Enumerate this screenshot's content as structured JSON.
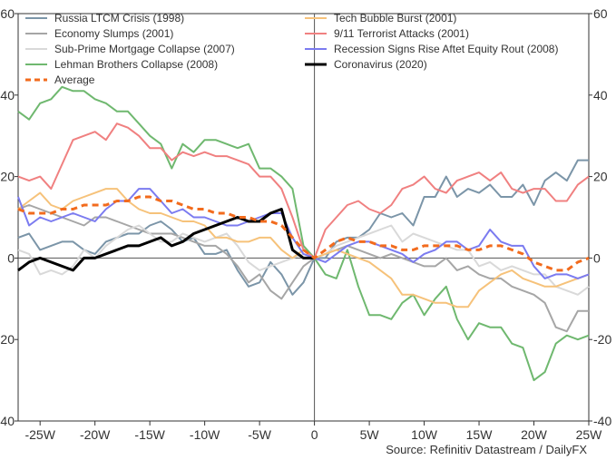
{
  "chart_data": {
    "type": "line",
    "title": "",
    "xlabel": "",
    "ylabel": "",
    "xlim": [
      -27,
      25
    ],
    "ylim": [
      -40,
      60
    ],
    "x_ticks": [
      -25,
      -20,
      -15,
      -10,
      -5,
      0,
      5,
      10,
      15,
      20,
      25
    ],
    "x_tick_labels": [
      "-25W",
      "-20W",
      "-15W",
      "-10W",
      "-5W",
      "0",
      "5W",
      "10W",
      "15W",
      "20W",
      "25W"
    ],
    "y_ticks": [
      -40,
      -20,
      0,
      20,
      40,
      60
    ],
    "y_tick_labels": [
      "-40",
      "-20",
      "0",
      "20",
      "40",
      "60"
    ],
    "grid": false,
    "legend_position": "top",
    "source": "Source: Refinitiv Datastream / DailyFX",
    "series": [
      {
        "name": "Russia LTCM Crisis (1998)",
        "color": "#7b95a8",
        "width": 2,
        "dash": "",
        "x": [
          -27,
          -26,
          -25,
          -24,
          -23,
          -22,
          -21,
          -20,
          -19,
          -18,
          -17,
          -16,
          -15,
          -14,
          -13,
          -12,
          -11,
          -10,
          -9,
          -8,
          -7,
          -6,
          -5,
          -4,
          -3,
          -2,
          -1,
          0,
          1,
          2,
          3,
          4,
          5,
          6,
          7,
          8,
          9,
          10,
          11,
          12,
          13,
          14,
          15,
          16,
          17,
          18,
          19,
          20,
          21,
          22,
          23,
          24,
          25
        ],
        "y": [
          5,
          6,
          2,
          3,
          4,
          4,
          2,
          1,
          4,
          5,
          6,
          6,
          8,
          9,
          7,
          4,
          5,
          1,
          1,
          2,
          -3,
          -7,
          -6,
          -1,
          -4,
          -9,
          -6,
          0,
          0,
          4,
          5,
          5,
          7,
          11,
          10,
          11,
          8,
          15,
          15,
          20,
          15,
          17,
          16,
          18,
          15,
          15,
          18,
          13,
          19,
          21,
          19,
          24,
          24
        ]
      },
      {
        "name": "Economy Slumps (2001)",
        "color": "#a6a6a6",
        "width": 2,
        "dash": "",
        "x": [
          -27,
          -26,
          -25,
          -24,
          -23,
          -22,
          -21,
          -20,
          -19,
          -18,
          -17,
          -16,
          -15,
          -14,
          -13,
          -12,
          -11,
          -10,
          -9,
          -8,
          -7,
          -6,
          -5,
          -4,
          -3,
          -2,
          -1,
          0,
          1,
          2,
          3,
          4,
          5,
          6,
          7,
          8,
          9,
          10,
          11,
          12,
          13,
          14,
          15,
          16,
          17,
          18,
          19,
          20,
          21,
          22,
          23,
          24,
          25
        ],
        "y": [
          12,
          13,
          12,
          11,
          10,
          9,
          8,
          10,
          10,
          9,
          8,
          7,
          6,
          6,
          6,
          5,
          4,
          3,
          3,
          1,
          -2,
          -6,
          -4,
          -8,
          -10,
          -6,
          -2,
          0,
          1,
          2,
          3,
          2,
          1,
          0,
          1,
          0,
          -1,
          -2,
          -2,
          0,
          -3,
          -2,
          -4,
          -5,
          -5,
          -7,
          -8,
          -9,
          -11,
          -17,
          -18,
          -13,
          -13
        ]
      },
      {
        "name": "Sub-Prime Mortgage Collapse (2007)",
        "color": "#d9d9d9",
        "width": 2,
        "dash": "",
        "x": [
          -27,
          -26,
          -25,
          -24,
          -23,
          -22,
          -21,
          -20,
          -19,
          -18,
          -17,
          -16,
          -15,
          -14,
          -13,
          -12,
          -11,
          -10,
          -9,
          -8,
          -7,
          -6,
          -5,
          -4,
          -3,
          -2,
          -1,
          0,
          1,
          2,
          3,
          4,
          5,
          6,
          7,
          8,
          9,
          10,
          11,
          12,
          13,
          14,
          15,
          16,
          17,
          18,
          19,
          20,
          21,
          22,
          23,
          24,
          25
        ],
        "y": [
          2,
          1,
          -4,
          -3,
          -4,
          -2,
          2,
          0,
          3,
          5,
          7,
          8,
          6,
          4,
          4,
          6,
          5,
          4,
          5,
          6,
          3,
          -1,
          -3,
          -2,
          -1,
          0,
          1,
          0,
          1,
          3,
          4,
          5,
          6,
          7,
          8,
          4,
          6,
          5,
          4,
          3,
          2,
          2,
          -2,
          -1,
          -3,
          -2,
          -3,
          -4,
          -4,
          -7,
          -8,
          -9,
          -7
        ]
      },
      {
        "name": "Lehman Brothers Collapse (2008)",
        "color": "#6fb86f",
        "width": 2,
        "dash": "",
        "x": [
          -27,
          -26,
          -25,
          -24,
          -23,
          -22,
          -21,
          -20,
          -19,
          -18,
          -17,
          -16,
          -15,
          -14,
          -13,
          -12,
          -11,
          -10,
          -9,
          -8,
          -7,
          -6,
          -5,
          -4,
          -3,
          -2,
          -1,
          0,
          1,
          2,
          3,
          4,
          5,
          6,
          7,
          8,
          9,
          10,
          11,
          12,
          13,
          14,
          15,
          16,
          17,
          18,
          19,
          20,
          21,
          22,
          23,
          24,
          25
        ],
        "y": [
          36,
          34,
          38,
          39,
          42,
          41,
          41,
          39,
          38,
          36,
          36,
          33,
          30,
          28,
          22,
          28,
          26,
          29,
          29,
          28,
          27,
          28,
          22,
          22,
          20,
          17,
          3,
          0,
          -4,
          -5,
          2,
          -7,
          -14,
          -14,
          -15,
          -11,
          -9,
          -14,
          -10,
          -7,
          -15,
          -20,
          -16,
          -17,
          -17,
          -21,
          -22,
          -30,
          -28,
          -21,
          -19,
          -20,
          -19
        ]
      },
      {
        "name": "Tech Bubble Burst (2001)",
        "color": "#f6c27a",
        "width": 2,
        "dash": "",
        "x": [
          -27,
          -26,
          -25,
          -24,
          -23,
          -22,
          -21,
          -20,
          -19,
          -18,
          -17,
          -16,
          -15,
          -14,
          -13,
          -12,
          -11,
          -10,
          -9,
          -8,
          -7,
          -6,
          -5,
          -4,
          -3,
          -2,
          -1,
          0,
          1,
          2,
          3,
          4,
          5,
          6,
          7,
          8,
          9,
          10,
          11,
          12,
          13,
          14,
          15,
          16,
          17,
          18,
          19,
          20,
          21,
          22,
          23,
          24,
          25
        ],
        "y": [
          12,
          14,
          16,
          13,
          12,
          14,
          15,
          16,
          17,
          17,
          14,
          12,
          11,
          11,
          10,
          9,
          9,
          8,
          5,
          5,
          4,
          4,
          5,
          5,
          2,
          0,
          2,
          0,
          1,
          2,
          1,
          0,
          -1,
          -3,
          -5,
          -9,
          -9,
          -10,
          -11,
          -11,
          -12,
          -12,
          -8,
          -6,
          -4,
          -3,
          -5,
          -6,
          -7,
          -7,
          -6,
          -5,
          -4
        ]
      },
      {
        "name": "9/11 Terrorist Attacks (2001)",
        "color": "#f08080",
        "width": 2,
        "dash": "",
        "x": [
          -27,
          -26,
          -25,
          -24,
          -23,
          -22,
          -21,
          -20,
          -19,
          -18,
          -17,
          -16,
          -15,
          -14,
          -13,
          -12,
          -11,
          -10,
          -9,
          -8,
          -7,
          -6,
          -5,
          -4,
          -3,
          -2,
          -1,
          0,
          1,
          2,
          3,
          4,
          5,
          6,
          7,
          8,
          9,
          10,
          11,
          12,
          13,
          14,
          15,
          16,
          17,
          18,
          19,
          20,
          21,
          22,
          23,
          24,
          25
        ],
        "y": [
          20,
          19,
          20,
          17,
          23,
          29,
          30,
          31,
          29,
          33,
          32,
          30,
          27,
          27,
          24,
          26,
          25,
          26,
          25,
          25,
          24,
          23,
          20,
          20,
          17,
          10,
          2,
          0,
          7,
          10,
          13,
          14,
          12,
          11,
          13,
          17,
          18,
          20,
          17,
          16,
          19,
          20,
          21,
          19,
          21,
          17,
          16,
          17,
          17,
          14,
          14,
          18,
          20
        ]
      },
      {
        "name": "Recession Signs Rise Aftet Equity Rout (2008)",
        "color": "#7b7bf0",
        "width": 2,
        "dash": "",
        "x": [
          -27,
          -26,
          -25,
          -24,
          -23,
          -22,
          -21,
          -20,
          -19,
          -18,
          -17,
          -16,
          -15,
          -14,
          -13,
          -12,
          -11,
          -10,
          -9,
          -8,
          -7,
          -6,
          -5,
          -4,
          -3,
          -2,
          -1,
          0,
          1,
          2,
          3,
          4,
          5,
          6,
          7,
          8,
          9,
          10,
          11,
          12,
          13,
          14,
          15,
          16,
          17,
          18,
          19,
          20,
          21,
          22,
          23,
          24,
          25
        ],
        "y": [
          15,
          8,
          10,
          9,
          10,
          11,
          10,
          9,
          12,
          14,
          14,
          17,
          17,
          14,
          11,
          12,
          10,
          10,
          9,
          8,
          8,
          9,
          10,
          11,
          11,
          5,
          1,
          0,
          -1,
          1,
          3,
          4,
          4,
          3,
          2,
          1,
          -1,
          1,
          2,
          4,
          4,
          2,
          3,
          7,
          4,
          3,
          3,
          -2,
          -5,
          -4,
          -4,
          -5,
          -4
        ]
      },
      {
        "name": "Coronavirus (2020)",
        "color": "#000000",
        "width": 3,
        "dash": "",
        "x": [
          -27,
          -26,
          -25,
          -24,
          -23,
          -22,
          -21,
          -20,
          -19,
          -18,
          -17,
          -16,
          -15,
          -14,
          -13,
          -12,
          -11,
          -10,
          -9,
          -8,
          -7,
          -6,
          -5,
          -4,
          -3,
          -2,
          -1,
          0
        ],
        "y": [
          -3,
          -1,
          0,
          -1,
          -2,
          -3,
          0,
          0,
          1,
          2,
          3,
          3,
          4,
          5,
          3,
          4,
          6,
          7,
          8,
          9,
          10,
          9,
          9,
          11,
          12,
          2,
          0,
          0
        ]
      },
      {
        "name": "Average",
        "color": "#f26b1d",
        "width": 3,
        "dash": "7,5",
        "x": [
          -27,
          -26,
          -25,
          -24,
          -23,
          -22,
          -21,
          -20,
          -19,
          -18,
          -17,
          -16,
          -15,
          -14,
          -13,
          -12,
          -11,
          -10,
          -9,
          -8,
          -7,
          -6,
          -5,
          -4,
          -3,
          -2,
          -1,
          0,
          1,
          2,
          3,
          4,
          5,
          6,
          7,
          8,
          9,
          10,
          11,
          12,
          13,
          14,
          15,
          16,
          17,
          18,
          19,
          20,
          21,
          22,
          23,
          24,
          25
        ],
        "y": [
          12,
          11,
          11,
          11,
          12,
          12,
          13,
          13,
          13,
          14,
          14,
          15,
          15,
          14,
          14,
          13,
          12,
          12,
          11,
          11,
          10,
          10,
          9,
          9,
          8,
          5,
          2,
          0,
          2,
          4,
          5,
          4,
          4,
          3,
          3,
          2,
          2,
          3,
          3,
          3,
          3,
          2,
          2,
          3,
          3,
          2,
          1,
          -1,
          -2,
          -3,
          -3,
          -1,
          0
        ]
      }
    ]
  }
}
